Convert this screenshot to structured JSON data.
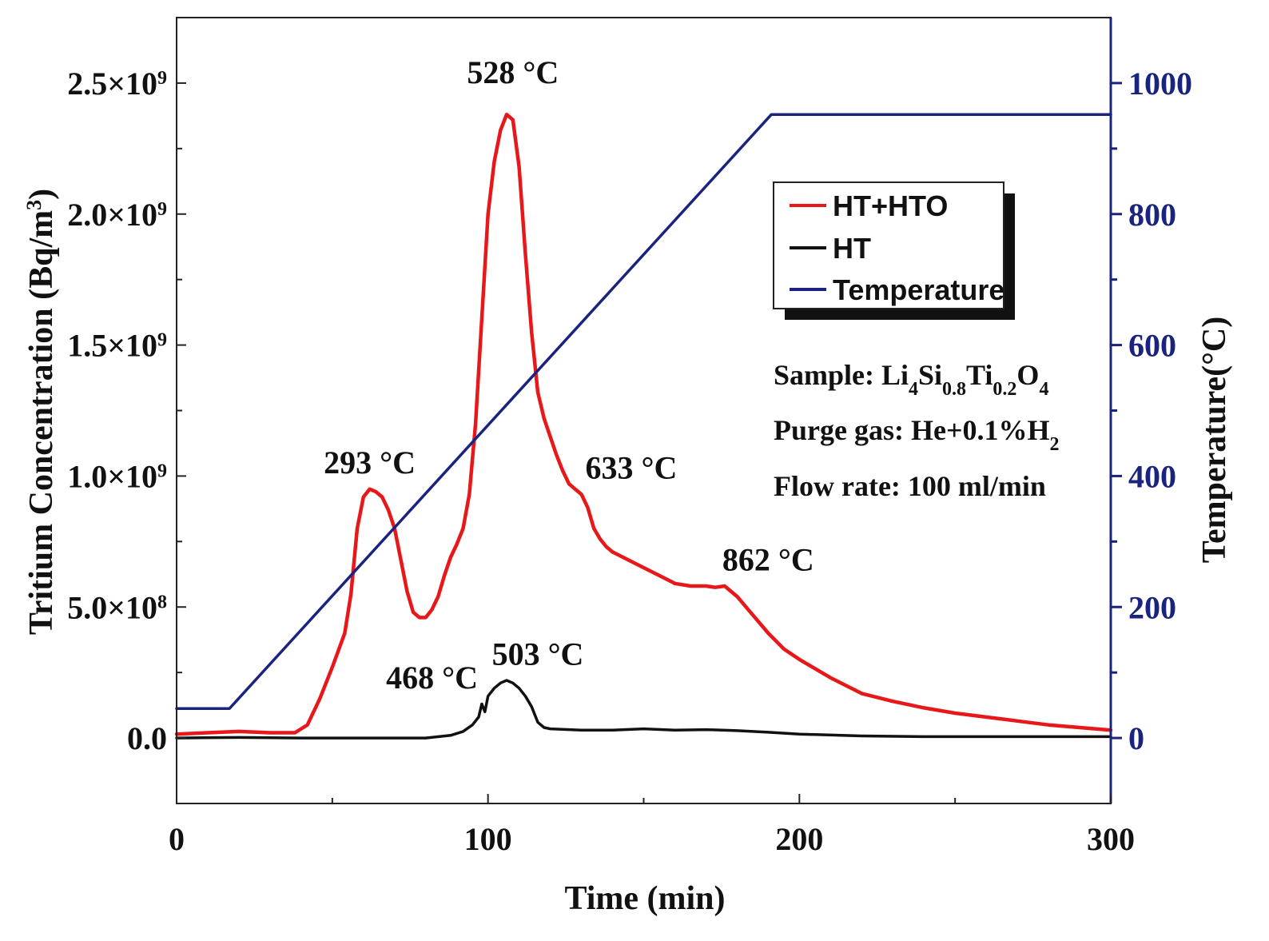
{
  "chart_data": {
    "type": "line",
    "title": "",
    "xlabel": "Time (min)",
    "ylabel_left": "Tritium Concentration (Bq/m",
    "ylabel_left_sup": "3",
    "ylabel_left_end": ")",
    "ylabel_right": "Temperature(°C)",
    "xlim": [
      0,
      300
    ],
    "ylim_left": [
      -250000000,
      2750000000
    ],
    "ylim_right": [
      -100,
      1100
    ],
    "x_ticks": [
      "0",
      "100",
      "200",
      "300"
    ],
    "y_left_ticks": [
      {
        "value": 0,
        "mant": "0.0",
        "exp": ""
      },
      {
        "value": 500000000,
        "mant": "5.0×10",
        "exp": "8"
      },
      {
        "value": 1000000000,
        "mant": "1.0×10",
        "exp": "9"
      },
      {
        "value": 1500000000,
        "mant": "1.5×10",
        "exp": "9"
      },
      {
        "value": 2000000000,
        "mant": "2.0×10",
        "exp": "9"
      },
      {
        "value": 2500000000,
        "mant": "2.5×10",
        "exp": "9"
      }
    ],
    "y_right_ticks": [
      "0",
      "200",
      "400",
      "600",
      "800",
      "1000"
    ],
    "series": [
      {
        "name": "HT+HTO",
        "axis": "left",
        "color": "#e8171a",
        "x": [
          0,
          10,
          20,
          30,
          38,
          42,
          46,
          50,
          54,
          56,
          58,
          60,
          62,
          64,
          66,
          68,
          70,
          72,
          74,
          76,
          78,
          80,
          82,
          84,
          86,
          88,
          90,
          92,
          94,
          96,
          98,
          100,
          102,
          104,
          106,
          108,
          110,
          112,
          114,
          116,
          118,
          120,
          122,
          124,
          126,
          128,
          130,
          132,
          134,
          136,
          138,
          140,
          145,
          150,
          155,
          160,
          165,
          170,
          173,
          176,
          180,
          185,
          190,
          195,
          200,
          210,
          220,
          230,
          240,
          250,
          260,
          270,
          280,
          290,
          300
        ],
        "y": [
          15000000,
          20000000,
          25000000,
          20000000,
          20000000,
          50000000,
          150000000,
          270000000,
          400000000,
          550000000,
          800000000,
          920000000,
          950000000,
          940000000,
          920000000,
          870000000,
          800000000,
          680000000,
          560000000,
          480000000,
          460000000,
          460000000,
          490000000,
          540000000,
          620000000,
          690000000,
          740000000,
          800000000,
          930000000,
          1200000000,
          1600000000,
          2000000000,
          2200000000,
          2320000000,
          2380000000,
          2360000000,
          2180000000,
          1850000000,
          1550000000,
          1320000000,
          1220000000,
          1150000000,
          1080000000,
          1020000000,
          970000000,
          950000000,
          930000000,
          880000000,
          800000000,
          760000000,
          730000000,
          710000000,
          680000000,
          650000000,
          620000000,
          590000000,
          580000000,
          580000000,
          575000000,
          580000000,
          540000000,
          470000000,
          400000000,
          340000000,
          300000000,
          230000000,
          170000000,
          140000000,
          115000000,
          95000000,
          80000000,
          65000000,
          50000000,
          40000000,
          30000000
        ]
      },
      {
        "name": "HT",
        "axis": "left",
        "color": "#111111",
        "x": [
          0,
          20,
          40,
          60,
          80,
          88,
          92,
          95,
          97,
          98,
          99,
          100,
          102,
          104,
          106,
          108,
          110,
          112,
          114,
          116,
          118,
          120,
          130,
          140,
          150,
          160,
          170,
          180,
          190,
          200,
          220,
          240,
          260,
          280,
          300
        ],
        "y": [
          0,
          2000000,
          0,
          0,
          0,
          10000000,
          25000000,
          50000000,
          80000000,
          130000000,
          100000000,
          160000000,
          190000000,
          210000000,
          220000000,
          210000000,
          190000000,
          160000000,
          120000000,
          60000000,
          40000000,
          35000000,
          30000000,
          30000000,
          35000000,
          30000000,
          32000000,
          28000000,
          22000000,
          15000000,
          8000000,
          5000000,
          5000000,
          5000000,
          5000000
        ]
      },
      {
        "name": "Temperature",
        "axis": "right",
        "color": "#1a237e",
        "x": [
          0,
          17,
          191,
          300
        ],
        "y": [
          45,
          45,
          952,
          952
        ]
      }
    ],
    "annotations": [
      {
        "text": "528 °C",
        "x": 108,
        "y": 2500000000
      },
      {
        "text": "293 °C",
        "x": 62,
        "y": 1010000000
      },
      {
        "text": "633 °C",
        "x": 146,
        "y": 990000000
      },
      {
        "text": "862 °C",
        "x": 190,
        "y": 640000000
      },
      {
        "text": "503 °C",
        "x": 116,
        "y": 280000000
      },
      {
        "text": "468 °C",
        "x": 82,
        "y": 190000000
      }
    ],
    "legend": {
      "placement": "top-right",
      "entries": [
        "HT+HTO",
        "HT",
        "Temperature"
      ]
    },
    "info": {
      "sample_label": "Sample: ",
      "sample_parts": [
        {
          "t": "Li",
          "sub": false
        },
        {
          "t": "4",
          "sub": true
        },
        {
          "t": "Si",
          "sub": false
        },
        {
          "t": "0.8",
          "sub": true
        },
        {
          "t": "Ti",
          "sub": false
        },
        {
          "t": "0.2",
          "sub": true
        },
        {
          "t": "O",
          "sub": false
        },
        {
          "t": "4",
          "sub": true
        }
      ],
      "purge_label": "Purge gas: He+0.1%H",
      "purge_sub": "2",
      "flow": "Flow rate: 100 ml/min"
    },
    "grid": false
  }
}
